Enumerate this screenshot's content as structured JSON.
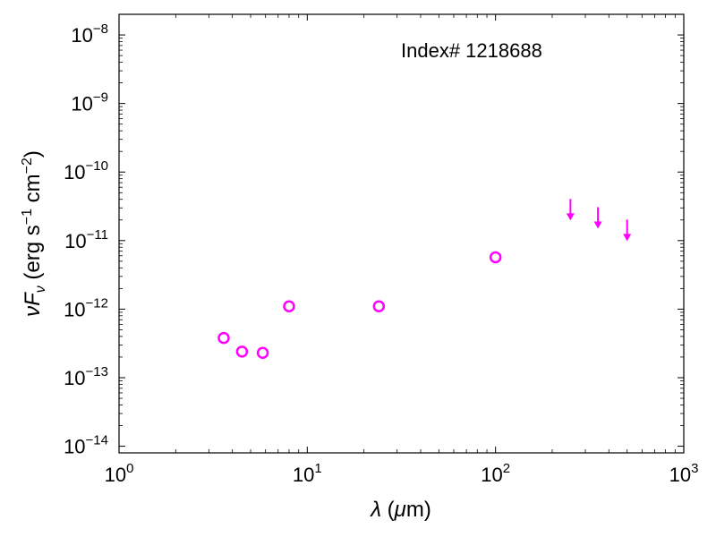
{
  "chart_data": {
    "type": "scatter",
    "annotation": "Index# 1218688",
    "xlabel": {
      "main": "λ",
      "unit_open": " (",
      "unit_mu": "μ",
      "unit_rest": "m)"
    },
    "ylabel": {
      "nu": "ν",
      "F": "F",
      "sub": "ν",
      "unit_a": " (erg s",
      "exp1": "−1",
      "unit_b": " cm",
      "exp2": "−2",
      "unit_c": ")"
    },
    "xscale": "log",
    "yscale": "log",
    "xlim": [
      1,
      1000
    ],
    "ylim": [
      8e-15,
      2e-08
    ],
    "x_ticks": [
      {
        "value": 1,
        "base": "10",
        "exp": "0"
      },
      {
        "value": 10,
        "base": "10",
        "exp": "1"
      },
      {
        "value": 100,
        "base": "10",
        "exp": "2"
      },
      {
        "value": 1000,
        "base": "10",
        "exp": "3"
      }
    ],
    "y_ticks": [
      {
        "value": 1e-14,
        "base": "10",
        "exp": "−14"
      },
      {
        "value": 1e-13,
        "base": "10",
        "exp": "−13"
      },
      {
        "value": 1e-12,
        "base": "10",
        "exp": "−12"
      },
      {
        "value": 1e-11,
        "base": "10",
        "exp": "−11"
      },
      {
        "value": 1e-10,
        "base": "10",
        "exp": "−10"
      },
      {
        "value": 1e-09,
        "base": "10",
        "exp": "−9"
      },
      {
        "value": 1e-08,
        "base": "10",
        "exp": "−8"
      }
    ],
    "grid": false,
    "color": "#ff00ff",
    "series": [
      {
        "marker": "open-circle",
        "points": [
          {
            "x": 3.6,
            "y": 3.8e-13
          },
          {
            "x": 4.5,
            "y": 2.4e-13
          },
          {
            "x": 5.8,
            "y": 2.3e-13
          },
          {
            "x": 8.0,
            "y": 1.1e-12
          },
          {
            "x": 24,
            "y": 1.1e-12
          },
          {
            "x": 100,
            "y": 5.7e-12
          }
        ]
      },
      {
        "marker": "upper-limit-arrow",
        "points": [
          {
            "x": 250,
            "y": 2.5e-11
          },
          {
            "x": 350,
            "y": 1.9e-11
          },
          {
            "x": 500,
            "y": 1.25e-11
          }
        ]
      }
    ]
  }
}
